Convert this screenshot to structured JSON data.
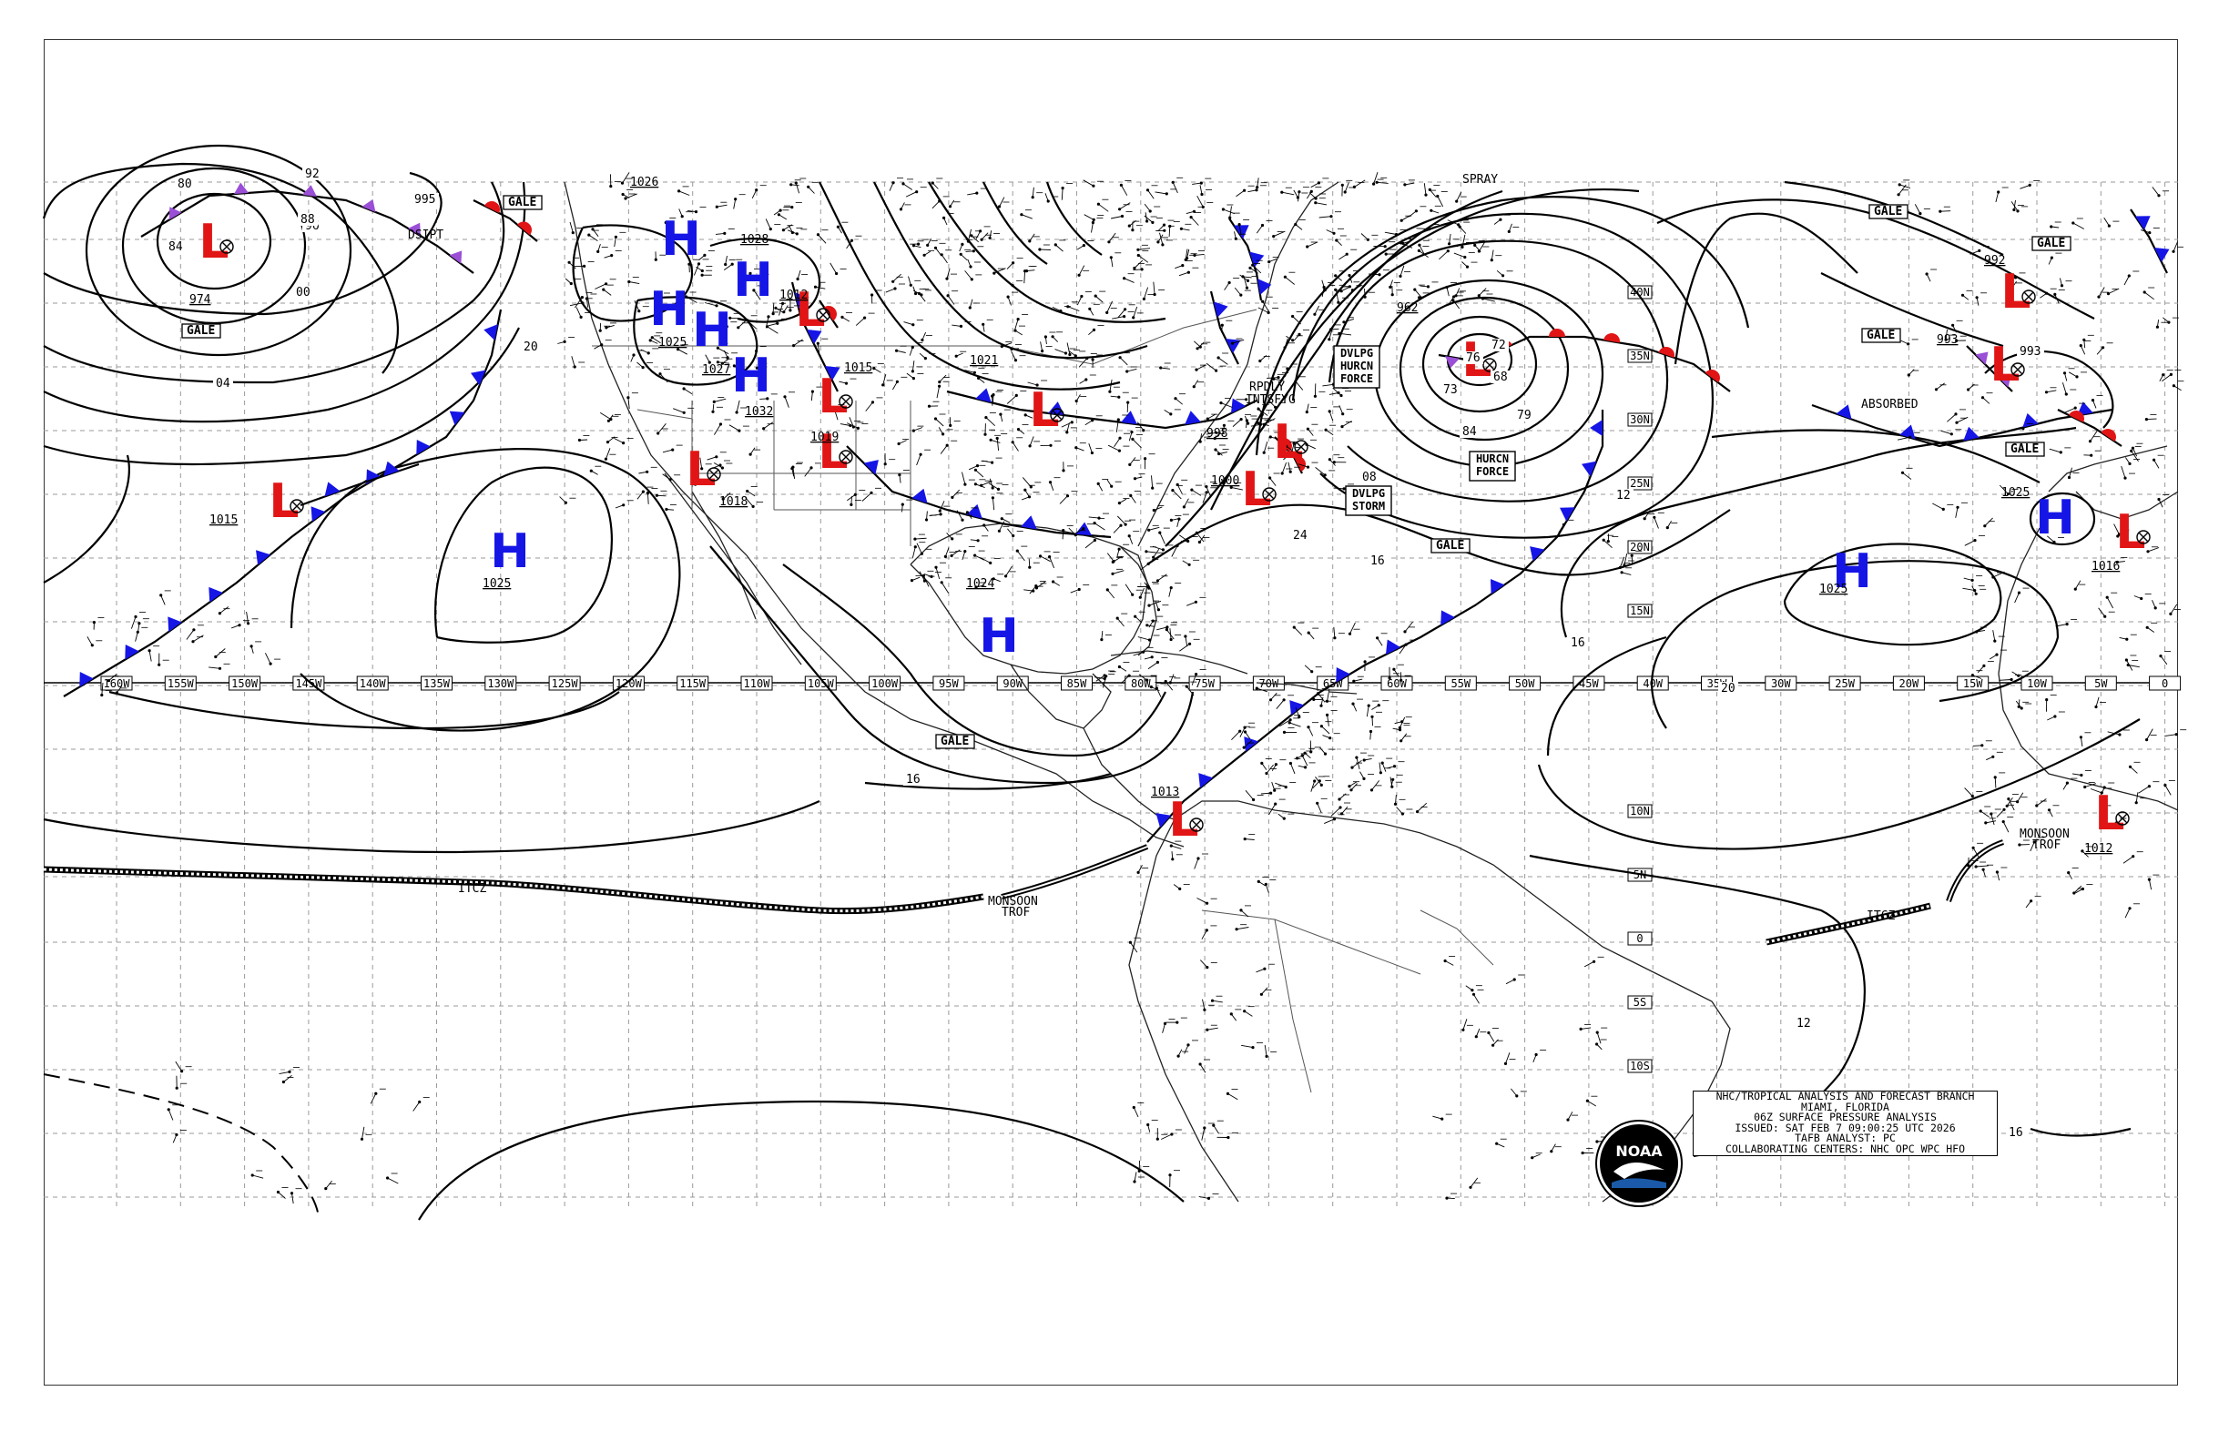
{
  "title_block": {
    "lines": [
      "NHC/TROPICAL ANALYSIS AND FORECAST BRANCH",
      "MIAMI, FLORIDA",
      "06Z SURFACE PRESSURE ANALYSIS",
      "ISSUED: SAT FEB 7 09:00:25 UTC 2026",
      "TAFB ANALYST: PC",
      "COLLABORATING CENTERS: NHC OPC WPC HFO"
    ]
  },
  "logo": {
    "text": "NOAA",
    "icon": "noaa-logo"
  },
  "colors": {
    "high": "#1515e6",
    "low": "#e11515",
    "cold_front": "#1515e6",
    "warm_front": "#e11515",
    "occluded": "#9a4fd6"
  },
  "longitude_ticks": [
    "160W",
    "155W",
    "150W",
    "145W",
    "140W",
    "135W",
    "130W",
    "125W",
    "120W",
    "115W",
    "110W",
    "105W",
    "100W",
    "95W",
    "90W",
    "85W",
    "80W",
    "75W",
    "70W",
    "65W",
    "60W",
    "55W",
    "50W",
    "45W",
    "40W",
    "35W",
    "30W",
    "25W",
    "20W",
    "15W",
    "10W",
    "5W",
    "0"
  ],
  "latitude_ticks": [
    "40N",
    "35N",
    "30N",
    "25N",
    "20N",
    "15N",
    "10N",
    "5N",
    "0",
    "5S",
    "10S"
  ],
  "pressure_centers": [
    {
      "type": "L",
      "value": "974"
    },
    {
      "type": "L",
      "value": "1015"
    },
    {
      "type": "H",
      "value": "1025"
    },
    {
      "type": "H",
      "value": "1026"
    },
    {
      "type": "H",
      "value": "1028"
    },
    {
      "type": "H",
      "value": "1025"
    },
    {
      "type": "H",
      "value": "1032"
    },
    {
      "type": "H",
      "value": "1027"
    },
    {
      "type": "L",
      "value": "1012"
    },
    {
      "type": "L",
      "value": "1015"
    },
    {
      "type": "L",
      "value": "1019"
    },
    {
      "type": "L",
      "value": "1018"
    },
    {
      "type": "L",
      "value": "1021"
    },
    {
      "type": "H",
      "value": "1024"
    },
    {
      "type": "L",
      "value": "1013"
    },
    {
      "type": "L",
      "value": "1000"
    },
    {
      "type": "L",
      "value": "998"
    },
    {
      "type": "L",
      "value": "962"
    },
    {
      "type": "H",
      "value": "1025"
    },
    {
      "type": "L",
      "value": "993"
    },
    {
      "type": "L",
      "value": "992"
    },
    {
      "type": "H",
      "value": "1025"
    },
    {
      "type": "L",
      "value": "1016"
    },
    {
      "type": "L",
      "value": "1012"
    }
  ],
  "boxed_labels": [
    "GALE",
    "GALE",
    "GALE",
    "GALE",
    "GALE",
    "GALE",
    "GALE",
    "GALE"
  ],
  "text_labels": {
    "dsipt": "DSIPT",
    "spray": "SPRAY",
    "rpdly": "RPDLY",
    "intsfyg": "INTSFYG",
    "dvlpg_hurcn_1": "DVLPG",
    "dvlpg_hurcn_2": "HURCN",
    "dvlpg_hurcn_3": "FORCE",
    "hurcn_force_1": "HURCN",
    "hurcn_force_2": "FORCE",
    "dvlpg_storm_1": "DVLPG",
    "dvlpg_storm_2": "STORM",
    "absorbed": "ABSORBED",
    "itcz_w": "ITCZ",
    "itcz_e": "ITCZ",
    "monsoon_w_1": "MONSOON",
    "monsoon_w_2": "TROF",
    "monsoon_e_1": "MONSOON",
    "monsoon_e_2": "TROF"
  },
  "isobar_labels": [
    "04",
    "00",
    "96",
    "92",
    "88",
    "84",
    "80",
    "08",
    "12",
    "16",
    "20",
    "24",
    "76",
    "72",
    "68",
    "79",
    "73",
    "84",
    "995",
    "993",
    "20",
    "16",
    "12",
    "16",
    "16"
  ]
}
